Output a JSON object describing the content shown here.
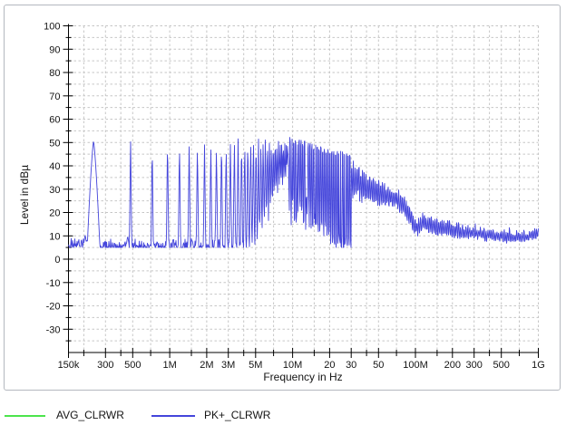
{
  "chart_data": {
    "type": "line",
    "title": "",
    "xlabel": "Frequency in Hz",
    "ylabel": "Level in dBµ",
    "x_scale": "log",
    "x_range_hz": [
      150000,
      1000000000
    ],
    "y_range_db": [
      -40,
      100
    ],
    "y_label_step_db": 10,
    "y_grid_step_db": 5,
    "grid": true,
    "legend_position": "bottom-left",
    "x_major_ticks": [
      {
        "f": 150000,
        "label": "150k"
      },
      {
        "f": 300000,
        "label": "300"
      },
      {
        "f": 500000,
        "label": "500"
      },
      {
        "f": 1000000,
        "label": "1M"
      },
      {
        "f": 2000000,
        "label": "2M"
      },
      {
        "f": 3000000,
        "label": "3M"
      },
      {
        "f": 5000000,
        "label": "5M"
      },
      {
        "f": 10000000,
        "label": "10M"
      },
      {
        "f": 20000000,
        "label": "20"
      },
      {
        "f": 30000000,
        "label": "30"
      },
      {
        "f": 50000000,
        "label": "50"
      },
      {
        "f": 100000000,
        "label": "100M"
      },
      {
        "f": 200000000,
        "label": "200"
      },
      {
        "f": 300000000,
        "label": "300"
      },
      {
        "f": 500000000,
        "label": "500"
      },
      {
        "f": 1000000000,
        "label": "1G"
      }
    ],
    "x_minor_ticks_hz": [
      200000,
      400000,
      700000,
      1500000,
      4000000,
      7000000,
      15000000,
      40000000,
      70000000,
      150000000,
      400000000,
      700000000
    ],
    "y_tick_labels": [
      "100",
      "90",
      "80",
      "70",
      "60",
      "50",
      "40",
      "30",
      "20",
      "10",
      "0",
      "-10",
      "-20",
      "-30"
    ],
    "series": [
      {
        "name": "AVG_CLRWR",
        "color": "#4ce44c",
        "note": "not distinguishable in plot, hidden behind PK+ trace"
      },
      {
        "name": "PK+_CLRWR",
        "color": "#4445db"
      }
    ],
    "pk_trace": {
      "noise_floor_db": 6.5,
      "fundamental_peak": {
        "f_hz": 240000,
        "db": 50.5
      },
      "harmonic_spacing_hz": 240000,
      "harmonics_from_hz": 480000,
      "harmonics_to_hz": 30000000,
      "harmonic_peak_envelope": [
        [
          480000,
          52
        ],
        [
          720000,
          49
        ],
        [
          960000,
          51
        ],
        [
          1500000,
          50
        ],
        [
          3000000,
          51
        ],
        [
          5000000,
          52
        ],
        [
          8000000,
          52
        ],
        [
          10000000,
          51
        ],
        [
          13000000,
          49
        ],
        [
          17000000,
          47
        ],
        [
          22000000,
          45.5
        ],
        [
          30000000,
          44
        ]
      ],
      "valley_floor_envelope": [
        [
          150000,
          7.8
        ],
        [
          210000,
          7
        ],
        [
          250000,
          6.3
        ],
        [
          4000000,
          6.5
        ],
        [
          5000000,
          7.5
        ],
        [
          6000000,
          11
        ],
        [
          7000000,
          17
        ],
        [
          8000000,
          24
        ],
        [
          9000000,
          30
        ],
        [
          12000000,
          26
        ],
        [
          15000000,
          18
        ],
        [
          20000000,
          11
        ],
        [
          25000000,
          8
        ],
        [
          30000000,
          7
        ]
      ],
      "minor_bumps": [
        [
          205000,
          10.5
        ],
        [
          455000,
          10
        ]
      ],
      "broadband_from_hz": 30000000,
      "broadband_envelope": [
        [
          30000000,
          44,
          25
        ],
        [
          35000000,
          40,
          24.5
        ],
        [
          40000000,
          37,
          24
        ],
        [
          50000000,
          33.5,
          23.5
        ],
        [
          60000000,
          31,
          23
        ],
        [
          70000000,
          29,
          22
        ],
        [
          80000000,
          26.5,
          19
        ],
        [
          90000000,
          23,
          14
        ],
        [
          97000000,
          18,
          10.5
        ],
        [
          103000000,
          16,
          9.5
        ],
        [
          115000000,
          19.5,
          12.5
        ],
        [
          125000000,
          18.5,
          12
        ],
        [
          150000000,
          17,
          10.5
        ],
        [
          200000000,
          15.5,
          9.5
        ],
        [
          300000000,
          13.5,
          8.5
        ],
        [
          400000000,
          12.5,
          8
        ],
        [
          500000000,
          12,
          7.5
        ],
        [
          650000000,
          11,
          7
        ],
        [
          800000000,
          11.5,
          7.5
        ],
        [
          900000000,
          12,
          8
        ],
        [
          1000000000,
          13,
          9
        ]
      ]
    }
  }
}
